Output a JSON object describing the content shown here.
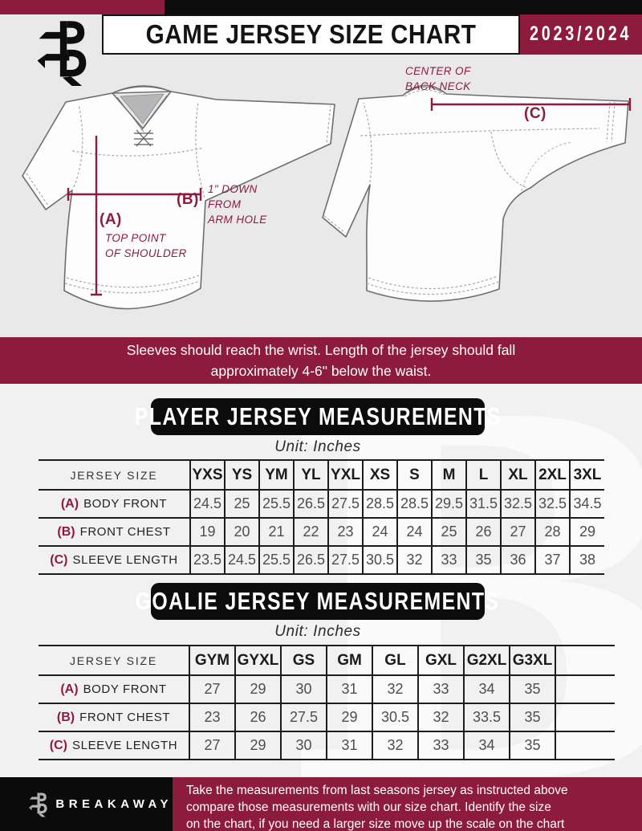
{
  "colors": {
    "maroon": "#8d1b3d",
    "black": "#0c0c0c",
    "page_bg": "#e9e9ea",
    "lower_bg": "#f1f1f2"
  },
  "header": {
    "title": "GAME JERSEY SIZE CHART",
    "season": "2023/2024"
  },
  "watermark_letter": "B",
  "diagram": {
    "front": {
      "key_a": "(A)",
      "note_a": "TOP POINT\nOF SHOULDER",
      "key_b": "(B)",
      "note_b": "1\" DOWN\nFROM\nARM HOLE"
    },
    "back": {
      "key_c": "(C)",
      "note_c": "CENTER OF\nBACK NECK"
    }
  },
  "banner": {
    "line1": "Sleeves should reach the wrist. Length of the jersey should fall",
    "line2": "approximately 4-6\" below the waist."
  },
  "player_section": {
    "title": "PLAYER JERSEY MEASUREMENTS",
    "unit": "Unit: Inches",
    "table": {
      "header": [
        "JERSEY SIZE",
        "YXS",
        "YS",
        "YM",
        "YL",
        "YXL",
        "XS",
        "S",
        "M",
        "L",
        "XL",
        "2XL",
        "3XL"
      ],
      "rows": [
        {
          "key": "(A)",
          "label": "BODY FRONT",
          "values": [
            "24.5",
            "25",
            "25.5",
            "26.5",
            "27.5",
            "28.5",
            "28.5",
            "29.5",
            "31.5",
            "32.5",
            "32.5",
            "34.5"
          ]
        },
        {
          "key": "(B)",
          "label": "FRONT CHEST",
          "values": [
            "19",
            "20",
            "21",
            "22",
            "23",
            "24",
            "24",
            "25",
            "26",
            "27",
            "28",
            "29"
          ]
        },
        {
          "key": "(C)",
          "label": "SLEEVE LENGTH",
          "values": [
            "23.5",
            "24.5",
            "25.5",
            "26.5",
            "27.5",
            "30.5",
            "32",
            "33",
            "35",
            "36",
            "37",
            "38"
          ]
        }
      ]
    }
  },
  "goalie_section": {
    "title": "GOALIE JERSEY MEASUREMENTS",
    "unit": "Unit: Inches",
    "table": {
      "header": [
        "JERSEY SIZE",
        "GYM",
        "GYXL",
        "GS",
        "GM",
        "GL",
        "GXL",
        "G2XL",
        "G3XL",
        ""
      ],
      "rows": [
        {
          "key": "(A)",
          "label": "BODY FRONT",
          "values": [
            "27",
            "29",
            "30",
            "31",
            "32",
            "33",
            "34",
            "35",
            ""
          ]
        },
        {
          "key": "(B)",
          "label": "FRONT CHEST",
          "values": [
            "23",
            "26",
            "27.5",
            "29",
            "30.5",
            "32",
            "33.5",
            "35",
            ""
          ]
        },
        {
          "key": "(C)",
          "label": "SLEEVE LENGTH",
          "values": [
            "27",
            "29",
            "30",
            "31",
            "32",
            "33",
            "34",
            "35",
            ""
          ]
        }
      ]
    }
  },
  "footer": {
    "brand": "BREAKAWAY",
    "lines": [
      "Take the measurements from last seasons jersey as instructed above",
      "compare those measurements  with our size chart. Identify the size",
      "on the chart, if you need a larger size move up the scale on the chart"
    ]
  }
}
